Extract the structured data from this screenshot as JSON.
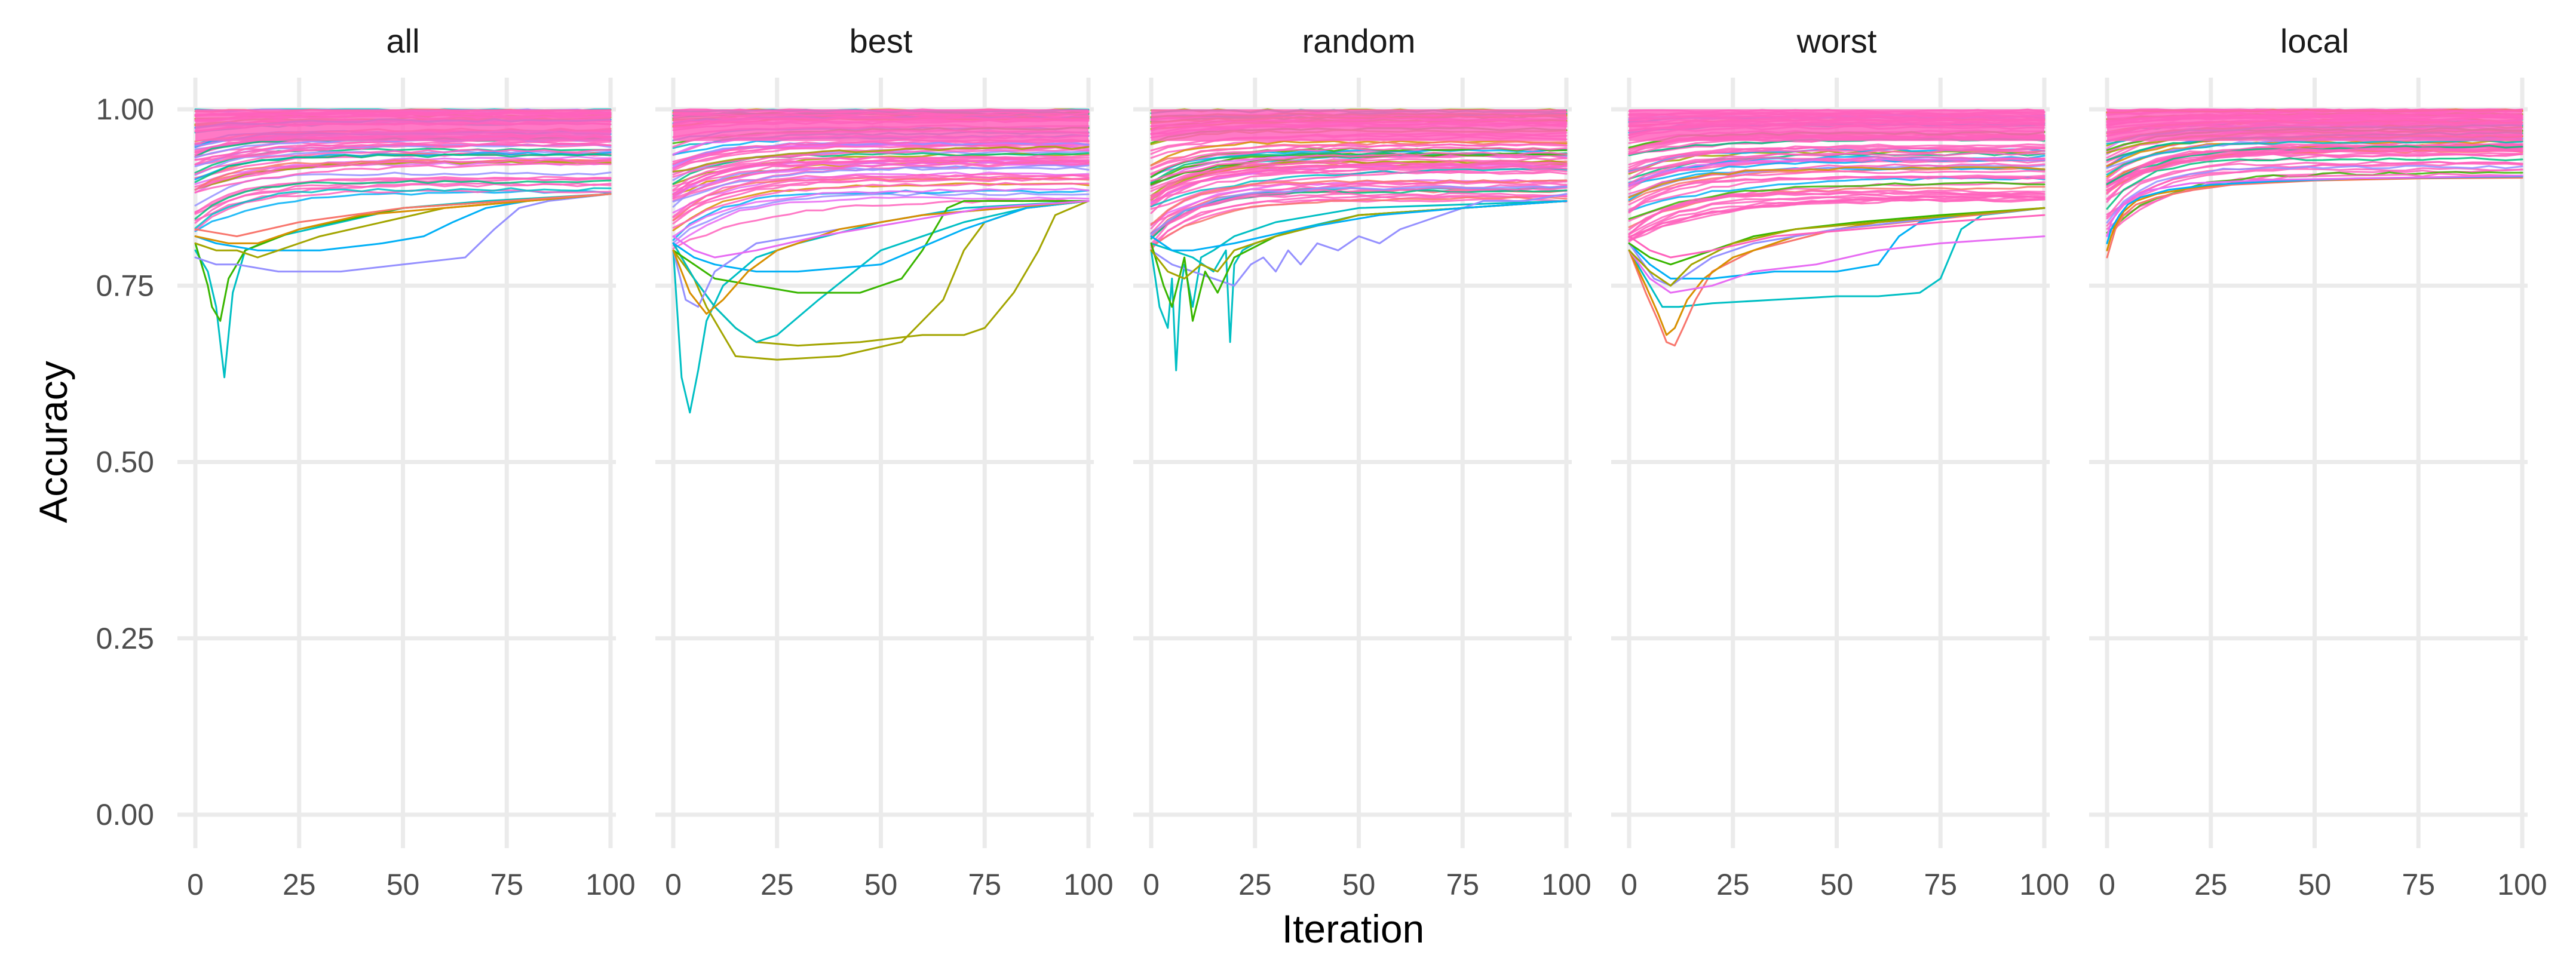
{
  "chart_data": {
    "type": "line",
    "layout": "facet",
    "xlabel": "Iteration",
    "ylabel": "Accuracy",
    "xlim": [
      0,
      100
    ],
    "ylim": [
      0,
      1
    ],
    "x_ticks": [
      0,
      25,
      50,
      75,
      100
    ],
    "x_tick_labels": [
      "0",
      "25",
      "50",
      "75",
      "100"
    ],
    "y_ticks": [
      0,
      0.25,
      0.5,
      0.75,
      1.0
    ],
    "y_tick_labels": [
      "0.00",
      "0.25",
      "0.50",
      "0.75",
      "1.00"
    ],
    "grid": true,
    "legend": "none",
    "note": "Each panel shows several hundred individual runs; representative curves listed below. Dense band of runs fills ~0.82-1.00 near iteration 0 and converges toward ~0.87-0.99 by iteration 100.",
    "palette": [
      "#F8766D",
      "#D89000",
      "#A3A500",
      "#39B600",
      "#00BF7D",
      "#00BFC4",
      "#00B0F6",
      "#9590FF",
      "#E76BF3",
      "#FF62BC"
    ],
    "band_color": "#FF62BC",
    "facets": [
      {
        "label": "all",
        "band": {
          "start_low": 0.82,
          "end_low": 0.875,
          "high": 1.0
        },
        "series": [
          {
            "color": "#00BFC4",
            "x": [
              0,
              3,
              5,
              7,
              9,
              12,
              20,
              35,
              50,
              70,
              100
            ],
            "y": [
              0.8,
              0.77,
              0.72,
              0.62,
              0.74,
              0.8,
              0.82,
              0.84,
              0.86,
              0.87,
              0.88
            ]
          },
          {
            "color": "#39B600",
            "x": [
              0,
              3,
              4,
              6,
              8,
              12,
              25,
              50,
              100
            ],
            "y": [
              0.81,
              0.75,
              0.72,
              0.7,
              0.76,
              0.8,
              0.83,
              0.86,
              0.88
            ]
          },
          {
            "color": "#9590FF",
            "x": [
              0,
              5,
              10,
              20,
              35,
              50,
              65,
              72,
              78,
              85,
              100
            ],
            "y": [
              0.79,
              0.78,
              0.78,
              0.77,
              0.77,
              0.78,
              0.79,
              0.83,
              0.86,
              0.87,
              0.88
            ]
          },
          {
            "color": "#00B0F6",
            "x": [
              0,
              5,
              15,
              30,
              45,
              55,
              62,
              70,
              80,
              100
            ],
            "y": [
              0.82,
              0.81,
              0.8,
              0.8,
              0.81,
              0.82,
              0.84,
              0.86,
              0.87,
              0.88
            ]
          },
          {
            "color": "#A3A500",
            "x": [
              0,
              5,
              10,
              15,
              20,
              30,
              45,
              60,
              80,
              100
            ],
            "y": [
              0.81,
              0.8,
              0.8,
              0.79,
              0.8,
              0.82,
              0.84,
              0.86,
              0.87,
              0.88
            ]
          },
          {
            "color": "#D89000",
            "x": [
              0,
              8,
              15,
              25,
              40,
              60,
              100
            ],
            "y": [
              0.82,
              0.81,
              0.81,
              0.83,
              0.85,
              0.86,
              0.88
            ]
          },
          {
            "color": "#F8766D",
            "x": [
              0,
              10,
              25,
              50,
              75,
              100
            ],
            "y": [
              0.83,
              0.82,
              0.84,
              0.86,
              0.87,
              0.88
            ]
          }
        ]
      },
      {
        "label": "best",
        "band": {
          "start_low": 0.8,
          "end_low": 0.87,
          "high": 1.0
        },
        "series": [
          {
            "color": "#00BFC4",
            "x": [
              0,
              2,
              4,
              6,
              8,
              12,
              20,
              30,
              50,
              70,
              100
            ],
            "y": [
              0.8,
              0.62,
              0.57,
              0.63,
              0.7,
              0.75,
              0.79,
              0.81,
              0.84,
              0.86,
              0.87
            ]
          },
          {
            "color": "#A3A500",
            "x": [
              0,
              5,
              8,
              12,
              15,
              25,
              40,
              55,
              65,
              70,
              75,
              85,
              100
            ],
            "y": [
              0.81,
              0.76,
              0.72,
              0.68,
              0.65,
              0.645,
              0.65,
              0.67,
              0.73,
              0.8,
              0.84,
              0.86,
              0.87
            ]
          },
          {
            "color": "#A3A500",
            "x": [
              0,
              5,
              10,
              15,
              20,
              30,
              45,
              60,
              70,
              75,
              82,
              88,
              92,
              100
            ],
            "y": [
              0.8,
              0.76,
              0.72,
              0.69,
              0.67,
              0.665,
              0.67,
              0.68,
              0.68,
              0.69,
              0.74,
              0.8,
              0.85,
              0.87
            ]
          },
          {
            "color": "#00BFC4",
            "x": [
              0,
              5,
              10,
              15,
              20,
              25,
              35,
              50,
              70,
              85,
              100
            ],
            "y": [
              0.81,
              0.76,
              0.72,
              0.69,
              0.67,
              0.68,
              0.73,
              0.8,
              0.84,
              0.86,
              0.87
            ]
          },
          {
            "color": "#39B600",
            "x": [
              0,
              5,
              10,
              20,
              30,
              45,
              55,
              60,
              66,
              70,
              100
            ],
            "y": [
              0.8,
              0.78,
              0.76,
              0.75,
              0.74,
              0.74,
              0.76,
              0.8,
              0.86,
              0.87,
              0.87
            ]
          },
          {
            "color": "#00B0F6",
            "x": [
              0,
              5,
              10,
              20,
              30,
              50,
              70,
              85,
              100
            ],
            "y": [
              0.81,
              0.79,
              0.78,
              0.77,
              0.77,
              0.78,
              0.83,
              0.86,
              0.87
            ]
          },
          {
            "color": "#9590FF",
            "x": [
              0,
              3,
              6,
              10,
              20,
              40,
              60,
              100
            ],
            "y": [
              0.8,
              0.73,
              0.72,
              0.77,
              0.81,
              0.83,
              0.85,
              0.87
            ]
          },
          {
            "color": "#D89000",
            "x": [
              0,
              4,
              8,
              12,
              18,
              25,
              40,
              60,
              100
            ],
            "y": [
              0.8,
              0.74,
              0.71,
              0.73,
              0.77,
              0.8,
              0.83,
              0.85,
              0.87
            ]
          },
          {
            "color": "#E76BF3",
            "x": [
              0,
              5,
              10,
              20,
              35,
              55,
              75,
              100
            ],
            "y": [
              0.82,
              0.8,
              0.79,
              0.8,
              0.82,
              0.84,
              0.86,
              0.87
            ]
          }
        ]
      },
      {
        "label": "random",
        "band": {
          "start_low": 0.8,
          "end_low": 0.87,
          "high": 1.0
        },
        "series": [
          {
            "color": "#00BFC4",
            "x": [
              0,
              2,
              4,
              5,
              6,
              7,
              8,
              10,
              12,
              15,
              20,
              30,
              50,
              100
            ],
            "y": [
              0.8,
              0.72,
              0.69,
              0.76,
              0.63,
              0.74,
              0.78,
              0.72,
              0.79,
              0.8,
              0.82,
              0.84,
              0.86,
              0.87
            ]
          },
          {
            "color": "#00BFC4",
            "x": [
              0,
              5,
              10,
              15,
              18,
              19,
              20,
              22,
              25,
              35,
              50,
              100
            ],
            "y": [
              0.81,
              0.8,
              0.79,
              0.77,
              0.8,
              0.67,
              0.78,
              0.8,
              0.81,
              0.83,
              0.85,
              0.87
            ]
          },
          {
            "color": "#9590FF",
            "x": [
              0,
              5,
              10,
              15,
              20,
              24,
              27,
              30,
              33,
              36,
              40,
              45,
              50,
              55,
              60,
              65,
              70,
              75,
              80,
              90,
              100
            ],
            "y": [
              0.8,
              0.78,
              0.77,
              0.76,
              0.75,
              0.78,
              0.79,
              0.77,
              0.8,
              0.78,
              0.81,
              0.8,
              0.82,
              0.81,
              0.83,
              0.84,
              0.85,
              0.86,
              0.87,
              0.87,
              0.88
            ]
          },
          {
            "color": "#39B600",
            "x": [
              0,
              3,
              5,
              8,
              10,
              13,
              16,
              20,
              30,
              50,
              100
            ],
            "y": [
              0.81,
              0.75,
              0.72,
              0.79,
              0.7,
              0.77,
              0.74,
              0.79,
              0.82,
              0.85,
              0.87
            ]
          },
          {
            "color": "#A3A500",
            "x": [
              0,
              4,
              8,
              12,
              16,
              20,
              30,
              50,
              100
            ],
            "y": [
              0.8,
              0.77,
              0.76,
              0.78,
              0.77,
              0.8,
              0.82,
              0.85,
              0.87
            ]
          },
          {
            "color": "#00B0F6",
            "x": [
              0,
              5,
              10,
              20,
              35,
              55,
              75,
              100
            ],
            "y": [
              0.82,
              0.8,
              0.8,
              0.81,
              0.83,
              0.85,
              0.86,
              0.87
            ]
          }
        ]
      },
      {
        "label": "worst",
        "band": {
          "start_low": 0.8,
          "end_low": 0.86,
          "high": 1.0
        },
        "series": [
          {
            "color": "#00BFC4",
            "x": [
              0,
              5,
              8,
              12,
              20,
              35,
              50,
              60,
              70,
              75,
              80,
              85,
              100
            ],
            "y": [
              0.8,
              0.75,
              0.72,
              0.72,
              0.725,
              0.73,
              0.735,
              0.735,
              0.74,
              0.76,
              0.83,
              0.85,
              0.86
            ]
          },
          {
            "color": "#F8766D",
            "x": [
              0,
              4,
              7,
              9,
              11,
              13,
              16,
              20,
              30,
              50,
              100
            ],
            "y": [
              0.8,
              0.74,
              0.7,
              0.67,
              0.665,
              0.69,
              0.73,
              0.77,
              0.8,
              0.83,
              0.86
            ]
          },
          {
            "color": "#D89000",
            "x": [
              0,
              4,
              7,
              9,
              11,
              14,
              18,
              25,
              40,
              60,
              100
            ],
            "y": [
              0.8,
              0.75,
              0.71,
              0.68,
              0.69,
              0.73,
              0.76,
              0.79,
              0.82,
              0.84,
              0.86
            ]
          },
          {
            "color": "#00B0F6",
            "x": [
              0,
              5,
              10,
              20,
              35,
              50,
              60,
              65,
              70,
              80,
              100
            ],
            "y": [
              0.81,
              0.78,
              0.76,
              0.76,
              0.77,
              0.77,
              0.78,
              0.82,
              0.84,
              0.85,
              0.86
            ]
          },
          {
            "color": "#E76BF3",
            "x": [
              0,
              5,
              10,
              20,
              30,
              45,
              60,
              75,
              100
            ],
            "y": [
              0.8,
              0.76,
              0.74,
              0.75,
              0.77,
              0.78,
              0.8,
              0.81,
              0.82
            ]
          },
          {
            "color": "#9590FF",
            "x": [
              0,
              6,
              10,
              15,
              20,
              30,
              50,
              80,
              100
            ],
            "y": [
              0.81,
              0.76,
              0.75,
              0.77,
              0.79,
              0.81,
              0.83,
              0.85,
              0.86
            ]
          },
          {
            "color": "#39B600",
            "x": [
              0,
              5,
              10,
              20,
              30,
              40,
              55,
              75,
              100
            ],
            "y": [
              0.81,
              0.79,
              0.78,
              0.8,
              0.82,
              0.83,
              0.84,
              0.85,
              0.86
            ]
          },
          {
            "color": "#A3A500",
            "x": [
              0,
              5,
              10,
              15,
              25,
              40,
              60,
              80,
              100
            ],
            "y": [
              0.8,
              0.77,
              0.75,
              0.78,
              0.81,
              0.83,
              0.84,
              0.85,
              0.86
            ]
          },
          {
            "color": "#FF62BC",
            "x": [
              0,
              5,
              10,
              20,
              35,
              55,
              75,
              100
            ],
            "y": [
              0.82,
              0.8,
              0.79,
              0.8,
              0.82,
              0.83,
              0.84,
              0.85
            ]
          }
        ]
      },
      {
        "label": "local",
        "band": {
          "start_low": 0.82,
          "end_low": 0.905,
          "high": 1.0
        },
        "series": [
          {
            "color": "#F8766D",
            "x": [
              0,
              1,
              2,
              4,
              7,
              12,
              20,
              30,
              50,
              75,
              100
            ],
            "y": [
              0.79,
              0.81,
              0.83,
              0.85,
              0.865,
              0.875,
              0.885,
              0.893,
              0.899,
              0.902,
              0.903
            ]
          },
          {
            "color": "#D89000",
            "x": [
              0,
              1,
              2,
              4,
              7,
              12,
              20,
              30,
              50,
              75,
              100
            ],
            "y": [
              0.8,
              0.82,
              0.835,
              0.855,
              0.87,
              0.88,
              0.888,
              0.895,
              0.9,
              0.903,
              0.905
            ]
          },
          {
            "color": "#00B0F6",
            "x": [
              0,
              1,
              3,
              5,
              8,
              15,
              25,
              40,
              60,
              100
            ],
            "y": [
              0.81,
              0.83,
              0.85,
              0.865,
              0.875,
              0.886,
              0.893,
              0.898,
              0.902,
              0.905
            ]
          },
          {
            "color": "#E76BF3",
            "x": [
              0,
              1,
              3,
              6,
              10,
              20,
              40,
              70,
              100
            ],
            "y": [
              0.82,
              0.84,
              0.86,
              0.875,
              0.885,
              0.895,
              0.9,
              0.903,
              0.906
            ]
          }
        ]
      }
    ]
  }
}
